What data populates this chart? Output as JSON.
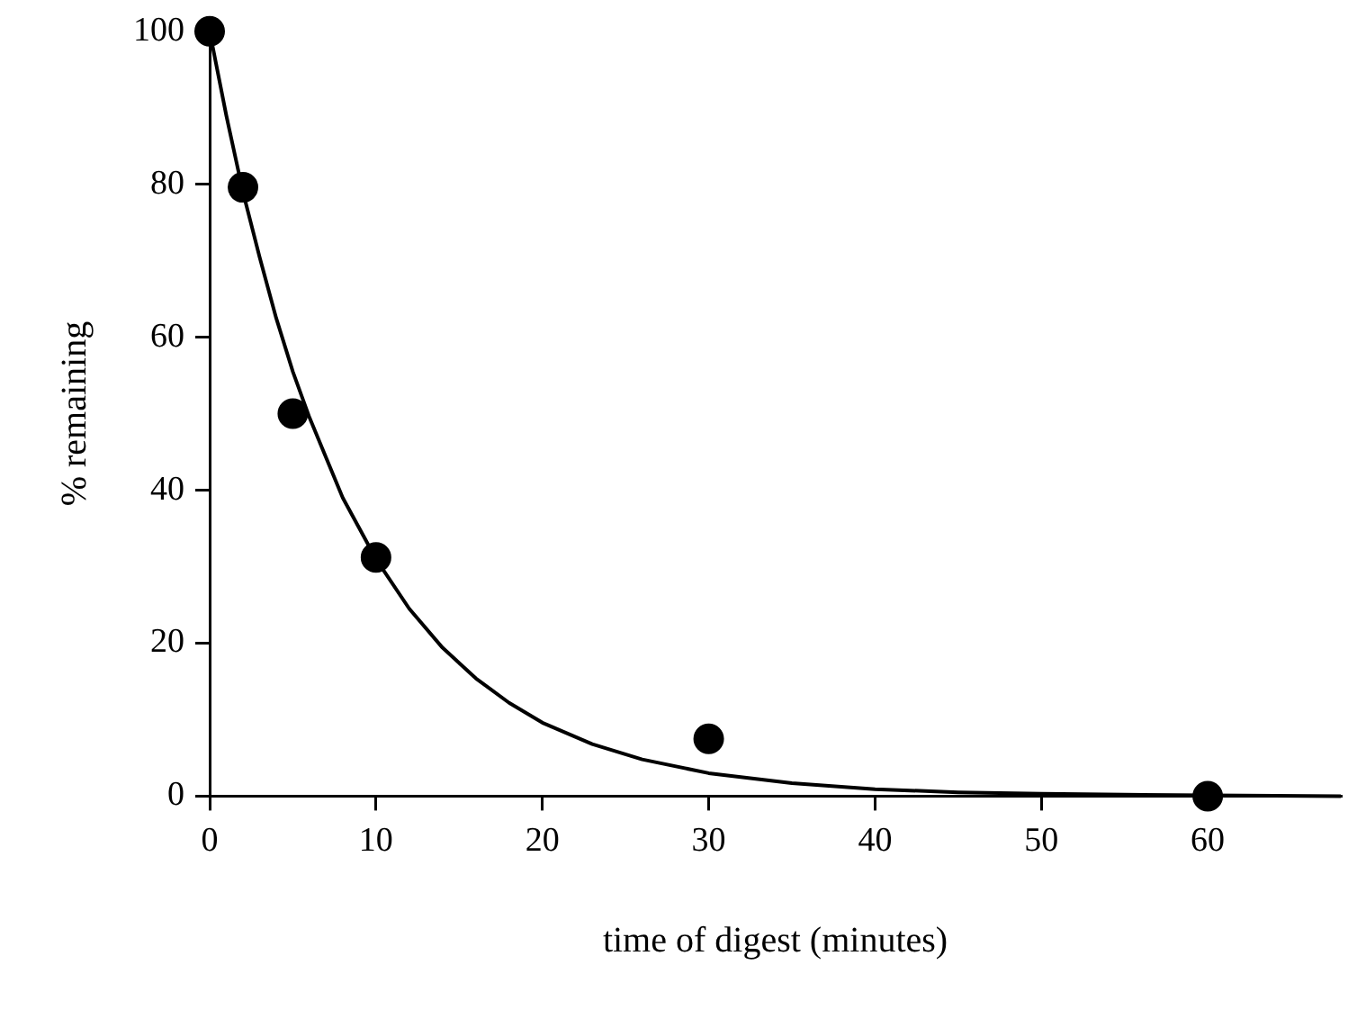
{
  "chart_data": {
    "type": "scatter",
    "xlabel": "time of digest (minutes)",
    "ylabel": "% remaining",
    "xlim": [
      0,
      68
    ],
    "xticks": [
      0,
      10,
      20,
      30,
      40,
      50,
      60
    ],
    "ylim": [
      0,
      100
    ],
    "yticks": [
      0,
      20,
      40,
      60,
      80,
      100
    ],
    "grid": false,
    "legend": false,
    "series": [
      {
        "type": "line",
        "color": "#000000",
        "marker": "none",
        "line_style": "solid",
        "x": [
          0,
          1,
          2,
          3,
          4,
          5,
          6,
          8,
          10,
          12,
          14,
          16,
          18,
          20,
          23,
          26,
          30,
          35,
          40,
          45,
          50,
          55,
          60,
          68
        ],
        "values": [
          100,
          89,
          79,
          70.5,
          62.5,
          55.5,
          49.5,
          39,
          31,
          24.5,
          19.4,
          15.4,
          12.2,
          9.6,
          6.8,
          4.8,
          3,
          1.7,
          0.9,
          0.5,
          0.3,
          0.2,
          0.1,
          0
        ]
      },
      {
        "color": "#000000",
        "marker": "circle",
        "x": [
          0,
          2,
          5,
          10,
          30,
          60
        ],
        "values": [
          100,
          79.6,
          50,
          31.2,
          7.5,
          0
        ]
      }
    ]
  }
}
